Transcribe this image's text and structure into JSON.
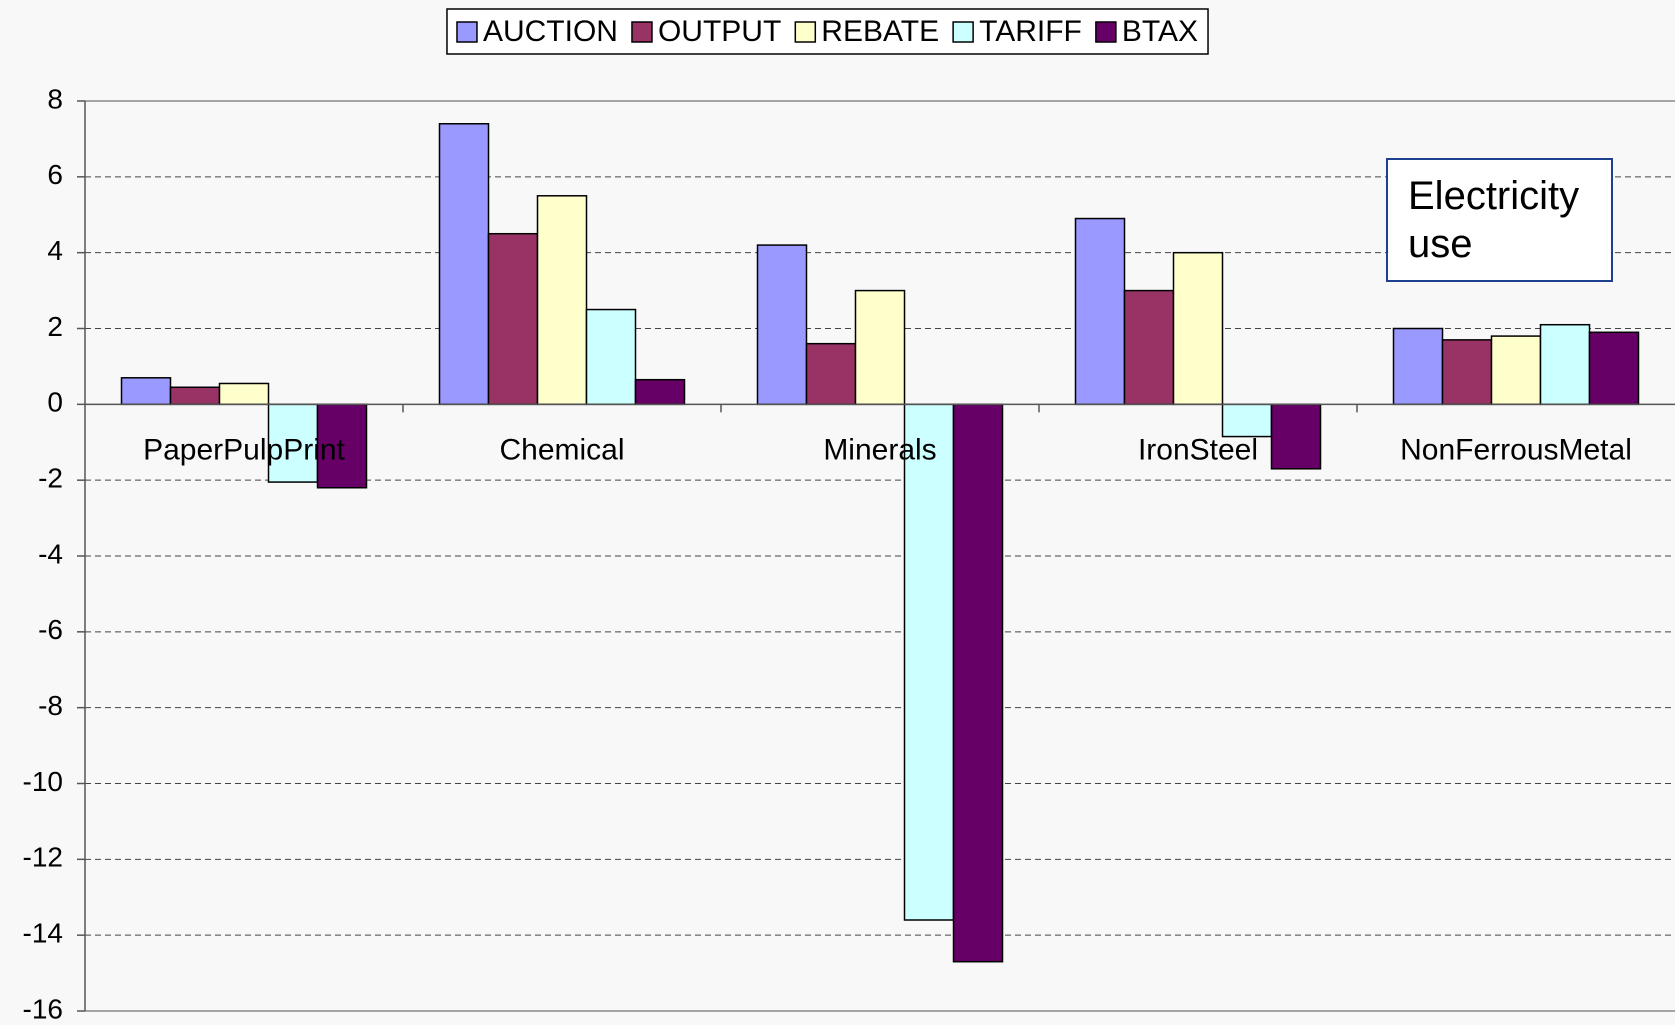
{
  "chart_data": {
    "type": "bar",
    "categories": [
      "PaperPulpPrint",
      "Chemical",
      "Minerals",
      "IronSteel",
      "NonFerrousMetal"
    ],
    "series": [
      {
        "name": "AUCTION",
        "color": "#9999ff",
        "values": [
          0.7,
          7.4,
          4.2,
          4.9,
          2.0
        ]
      },
      {
        "name": "OUTPUT",
        "color": "#993366",
        "values": [
          0.45,
          4.5,
          1.6,
          3.0,
          1.7
        ]
      },
      {
        "name": "REBATE",
        "color": "#ffffcc",
        "values": [
          0.55,
          5.5,
          3.0,
          4.0,
          1.8
        ]
      },
      {
        "name": "TARIFF",
        "color": "#ccffff",
        "values": [
          -2.05,
          2.5,
          -13.6,
          -0.85,
          2.1
        ]
      },
      {
        "name": "BTAX",
        "color": "#660066",
        "values": [
          -2.2,
          0.65,
          -14.7,
          -1.7,
          1.9
        ]
      }
    ],
    "annotation": "Electricity use",
    "ylim": [
      -16,
      8
    ],
    "yticks": [
      -16,
      -14,
      -12,
      -10,
      -8,
      -6,
      -4,
      -2,
      0,
      2,
      4,
      6,
      8
    ],
    "grid": true,
    "legend": "top"
  }
}
